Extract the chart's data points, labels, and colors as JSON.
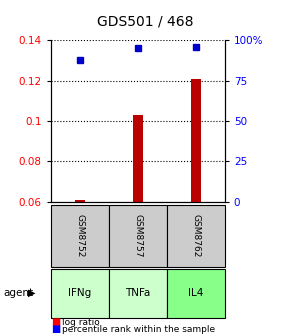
{
  "title": "GDS501 / 468",
  "samples": [
    "GSM8752",
    "GSM8757",
    "GSM8762"
  ],
  "agents": [
    "IFNg",
    "TNFa",
    "IL4"
  ],
  "log_ratios": [
    0.061,
    0.103,
    0.121
  ],
  "percentile_ranks": [
    88,
    95,
    96
  ],
  "ylim_left": [
    0.06,
    0.14
  ],
  "ylim_right": [
    0,
    100
  ],
  "yticks_left": [
    0.06,
    0.08,
    0.1,
    0.12,
    0.14
  ],
  "yticks_right": [
    0,
    25,
    50,
    75,
    100
  ],
  "ytick_labels_right": [
    "0",
    "25",
    "50",
    "75",
    "100%"
  ],
  "bar_color": "#bb0000",
  "dot_color": "#0000cc",
  "agent_colors": [
    "#ccffcc",
    "#ccffcc",
    "#88ff88"
  ],
  "sample_box_color": "#cccccc",
  "legend_log_label": "log ratio",
  "legend_pct_label": "percentile rank within the sample",
  "bar_width": 0.18,
  "x_positions": [
    1,
    2,
    3
  ],
  "baseline": 0.06
}
